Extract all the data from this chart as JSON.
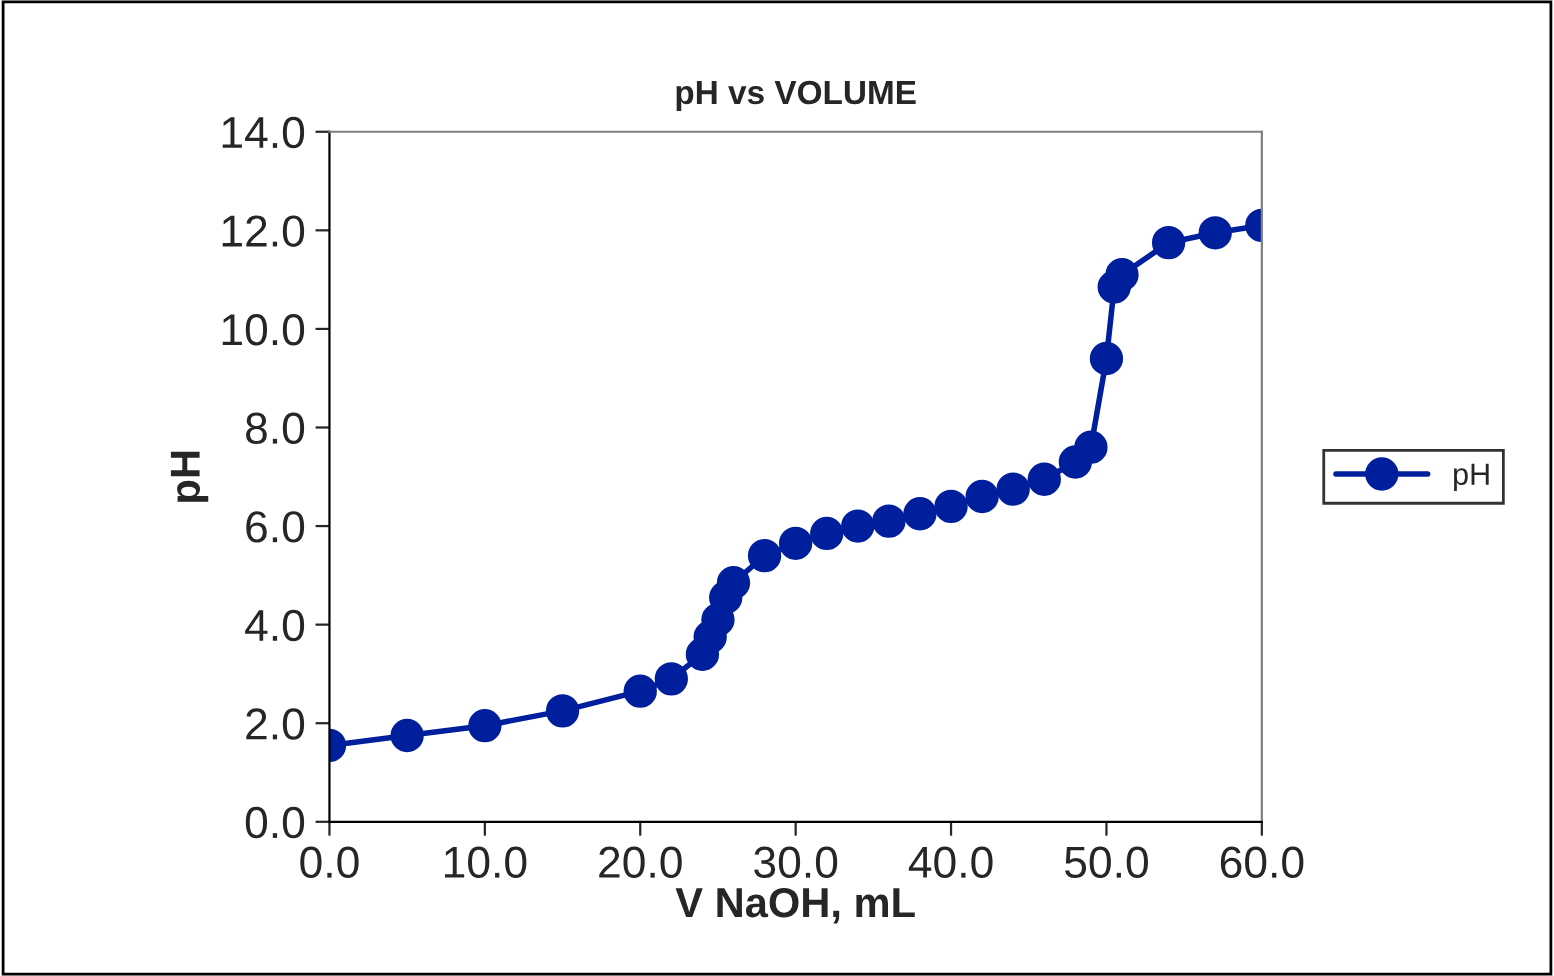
{
  "chart_data": {
    "type": "line",
    "title": "pH vs VOLUME",
    "xlabel": "V NaOH, mL",
    "ylabel": "pH",
    "xlim": [
      0,
      60
    ],
    "ylim": [
      0,
      14
    ],
    "xticks": [
      {
        "value": 0,
        "label": "0.0"
      },
      {
        "value": 10,
        "label": "10.0"
      },
      {
        "value": 20,
        "label": "20.0"
      },
      {
        "value": 30,
        "label": "30.0"
      },
      {
        "value": 40,
        "label": "40.0"
      },
      {
        "value": 50,
        "label": "50.0"
      },
      {
        "value": 60,
        "label": "60.0"
      }
    ],
    "yticks": [
      {
        "value": 0,
        "label": "0.0"
      },
      {
        "value": 2,
        "label": "2.0"
      },
      {
        "value": 4,
        "label": "4.0"
      },
      {
        "value": 6,
        "label": "6.0"
      },
      {
        "value": 8,
        "label": "8.0"
      },
      {
        "value": 10,
        "label": "10.0"
      },
      {
        "value": 12,
        "label": "12.0"
      },
      {
        "value": 14,
        "label": "14.0"
      }
    ],
    "x": [
      0,
      5,
      10,
      15,
      20,
      22,
      24,
      24.5,
      25,
      25.5,
      26,
      28,
      30,
      32,
      34,
      36,
      38,
      40,
      42,
      44,
      46,
      48,
      49,
      50,
      50.5,
      51,
      54,
      57,
      60
    ],
    "series": [
      {
        "name": "pH",
        "color": "#001f9c",
        "values": [
          1.55,
          1.75,
          1.95,
          2.25,
          2.65,
          2.9,
          3.4,
          3.75,
          4.1,
          4.55,
          4.85,
          5.4,
          5.65,
          5.85,
          6.0,
          6.1,
          6.25,
          6.4,
          6.6,
          6.75,
          6.95,
          7.3,
          7.6,
          9.4,
          10.85,
          11.1,
          11.75,
          11.95,
          12.1
        ]
      }
    ],
    "marker": "circle",
    "line_style": "solid",
    "legend": "right",
    "grid": false
  }
}
